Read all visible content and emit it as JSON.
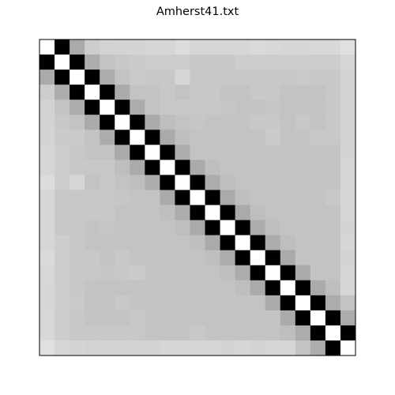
{
  "chart_data": {
    "type": "heatmap",
    "title": "Amherst41.txt",
    "xlabel": "",
    "ylabel": "",
    "colormap": "gray",
    "size": 21,
    "rows": [
      [
        255,
        0,
        170,
        205,
        210,
        212,
        212,
        214,
        214,
        220,
        214,
        214,
        214,
        214,
        218,
        216,
        214,
        214,
        216,
        216,
        224
      ],
      [
        0,
        255,
        0,
        172,
        195,
        200,
        202,
        205,
        205,
        205,
        200,
        200,
        200,
        205,
        205,
        205,
        205,
        205,
        205,
        205,
        214
      ],
      [
        170,
        0,
        255,
        0,
        172,
        195,
        202,
        200,
        200,
        214,
        200,
        200,
        200,
        200,
        200,
        200,
        200,
        202,
        200,
        200,
        212
      ],
      [
        205,
        172,
        0,
        255,
        0,
        170,
        195,
        195,
        200,
        195,
        200,
        200,
        195,
        195,
        200,
        200,
        195,
        195,
        195,
        200,
        210
      ],
      [
        210,
        195,
        172,
        0,
        255,
        0,
        172,
        195,
        200,
        200,
        200,
        200,
        198,
        195,
        195,
        198,
        195,
        195,
        195,
        200,
        210
      ],
      [
        212,
        200,
        195,
        170,
        0,
        255,
        0,
        170,
        190,
        195,
        198,
        195,
        195,
        195,
        200,
        200,
        195,
        200,
        195,
        200,
        210
      ],
      [
        212,
        202,
        202,
        195,
        172,
        0,
        255,
        0,
        170,
        190,
        195,
        195,
        195,
        195,
        195,
        202,
        195,
        195,
        200,
        200,
        210
      ],
      [
        214,
        205,
        200,
        195,
        195,
        170,
        0,
        255,
        0,
        172,
        195,
        195,
        195,
        195,
        195,
        195,
        195,
        195,
        195,
        195,
        212
      ],
      [
        214,
        205,
        200,
        200,
        200,
        190,
        170,
        0,
        255,
        0,
        170,
        190,
        195,
        195,
        195,
        195,
        195,
        195,
        195,
        195,
        214
      ],
      [
        220,
        205,
        214,
        195,
        200,
        195,
        190,
        172,
        0,
        255,
        0,
        172,
        190,
        195,
        195,
        195,
        195,
        195,
        195,
        195,
        214
      ],
      [
        214,
        200,
        200,
        200,
        200,
        198,
        195,
        195,
        170,
        0,
        255,
        0,
        170,
        190,
        195,
        195,
        195,
        195,
        195,
        200,
        214
      ],
      [
        214,
        200,
        200,
        200,
        200,
        195,
        195,
        195,
        190,
        172,
        0,
        255,
        0,
        170,
        190,
        195,
        195,
        195,
        195,
        195,
        214
      ],
      [
        214,
        200,
        200,
        195,
        198,
        195,
        195,
        195,
        195,
        190,
        170,
        0,
        255,
        0,
        172,
        190,
        195,
        195,
        195,
        195,
        212
      ],
      [
        214,
        205,
        200,
        195,
        195,
        195,
        195,
        195,
        195,
        195,
        190,
        170,
        0,
        255,
        0,
        172,
        190,
        195,
        195,
        195,
        214
      ],
      [
        218,
        205,
        200,
        200,
        195,
        200,
        195,
        195,
        195,
        195,
        195,
        190,
        172,
        0,
        255,
        0,
        170,
        195,
        195,
        195,
        212
      ],
      [
        216,
        205,
        200,
        200,
        198,
        200,
        202,
        195,
        195,
        195,
        195,
        195,
        190,
        172,
        0,
        255,
        0,
        170,
        195,
        195,
        214
      ],
      [
        214,
        205,
        200,
        195,
        195,
        195,
        195,
        195,
        195,
        195,
        195,
        195,
        195,
        190,
        170,
        0,
        255,
        0,
        170,
        190,
        214
      ],
      [
        214,
        205,
        202,
        195,
        195,
        200,
        195,
        195,
        195,
        195,
        195,
        195,
        195,
        195,
        195,
        170,
        0,
        255,
        0,
        172,
        195
      ],
      [
        216,
        205,
        200,
        195,
        195,
        195,
        200,
        195,
        195,
        195,
        195,
        195,
        195,
        195,
        195,
        195,
        170,
        0,
        255,
        0,
        172
      ],
      [
        216,
        205,
        200,
        200,
        200,
        200,
        200,
        195,
        195,
        195,
        200,
        195,
        195,
        195,
        195,
        195,
        190,
        172,
        0,
        255,
        0
      ],
      [
        224,
        214,
        212,
        210,
        210,
        210,
        210,
        212,
        214,
        214,
        214,
        214,
        212,
        214,
        212,
        214,
        214,
        195,
        172,
        0,
        255
      ]
    ]
  }
}
